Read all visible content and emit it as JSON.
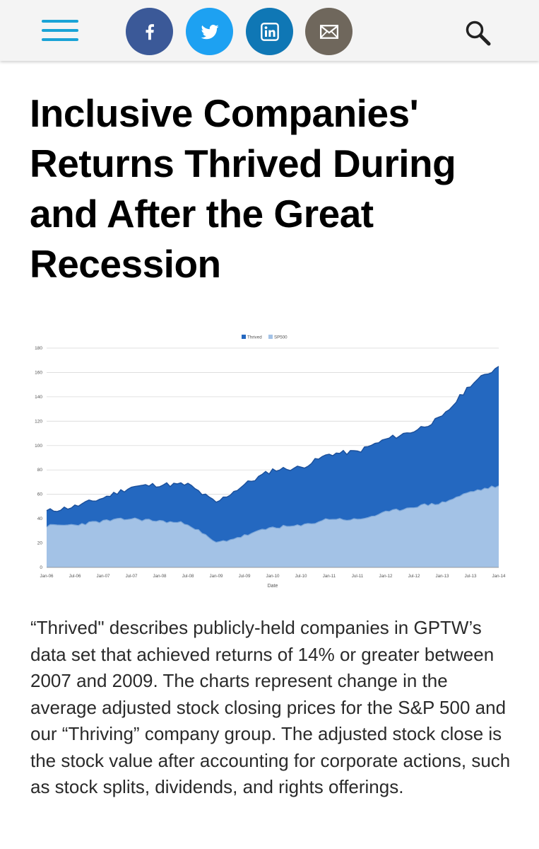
{
  "header": {
    "menu_icon": "hamburger-menu-icon",
    "share_buttons": [
      {
        "name": "facebook",
        "icon": "facebook-icon",
        "color": "#3b5998"
      },
      {
        "name": "twitter",
        "icon": "twitter-icon",
        "color": "#1da1f2"
      },
      {
        "name": "linkedin",
        "icon": "linkedin-icon",
        "color": "#0f77b5"
      },
      {
        "name": "email",
        "icon": "envelope-icon",
        "color": "#6f675c"
      }
    ],
    "search_icon": "search-icon"
  },
  "article": {
    "title": "Inclusive Companies' Returns Thrived During and After the Great Recession",
    "paragraph": "“Thrived\" describes publicly-held companies in GPTW’s data set that achieved returns of 14% or greater between 2007 and 2009. The charts represent change in the average adjusted stock closing prices for the S&P 500 and our “Thriving” company group. The adjusted stock close is the stock value after accounting for corporate actions, such as stock splits, dividends, and rights offerings."
  },
  "chart_data": {
    "type": "area",
    "xlabel": "Date",
    "ylabel": "",
    "ylim": [
      0,
      180
    ],
    "yticks": [
      0,
      20,
      40,
      60,
      80,
      100,
      120,
      140,
      160,
      180
    ],
    "grid": true,
    "legend_position": "top-center",
    "categories": [
      "Jan-06",
      "Jul-06",
      "Jan-07",
      "Jul-07",
      "Jan-08",
      "Jul-08",
      "Jan-09",
      "Jul-09",
      "Jan-10",
      "Jul-10",
      "Jan-11",
      "Jul-11",
      "Jan-12",
      "Jul-12",
      "Jan-13",
      "Jul-13",
      "Jan-14"
    ],
    "series": [
      {
        "name": "Thrived",
        "color": "#2468c0",
        "values": [
          46,
          50,
          57,
          66,
          68,
          68,
          53,
          68,
          80,
          82,
          93,
          95,
          105,
          112,
          123,
          150,
          165
        ]
      },
      {
        "name": "SP500",
        "color": "#a3c2e6",
        "values": [
          34,
          35,
          38,
          40,
          38,
          36,
          20,
          26,
          33,
          34,
          40,
          39,
          45,
          50,
          53,
          62,
          67
        ]
      }
    ]
  }
}
